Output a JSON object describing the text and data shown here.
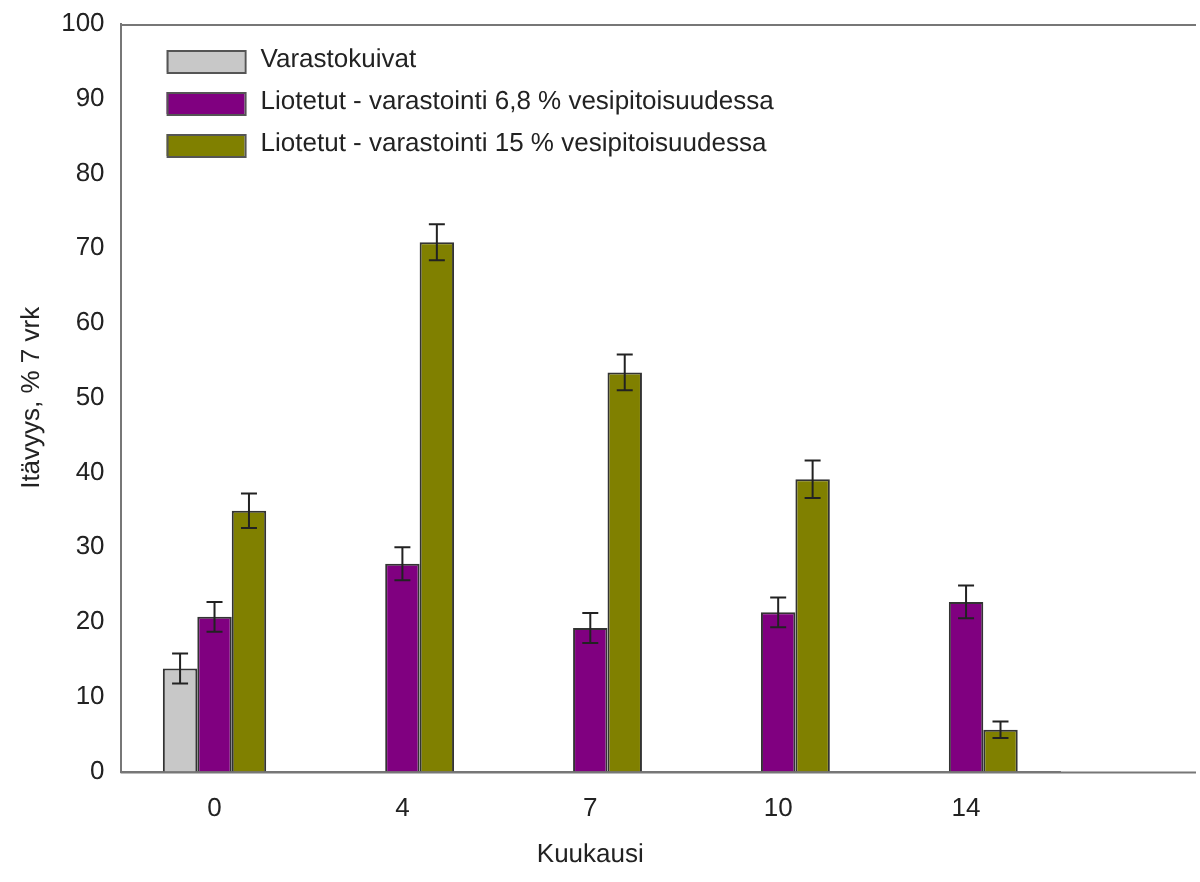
{
  "chart_data": {
    "type": "bar",
    "xlabel": "Kuukausi",
    "ylabel": "Itävyys, % 7 vrk",
    "categories": [
      "0",
      "4",
      "7",
      "10",
      "14"
    ],
    "series": [
      {
        "name": "Varastokuivat",
        "color": "#c8c8c8",
        "values": [
          13.8,
          null,
          null,
          null,
          null
        ],
        "errors": [
          2,
          null,
          null,
          null,
          null
        ]
      },
      {
        "name": "Liotetut - varastointi 6,8 % vesipitoisuudessa",
        "color": "#800080",
        "values": [
          20.7,
          27.8,
          19.2,
          21.3,
          22.7
        ],
        "errors": [
          2,
          2.2,
          2,
          2,
          2.2
        ]
      },
      {
        "name": "Liotetut - varastointi 15 % vesipitoisuudessa",
        "color": "#808000",
        "values": [
          34.9,
          70.8,
          53.4,
          39.1,
          5.6
        ],
        "errors": [
          2.3,
          2.4,
          2.4,
          2.5,
          1.1
        ]
      }
    ],
    "ylim": [
      0,
      100
    ],
    "yticks": [
      0,
      10,
      20,
      30,
      40,
      50,
      60,
      70,
      80,
      90,
      100
    ],
    "grid": false,
    "legend": "top left"
  }
}
